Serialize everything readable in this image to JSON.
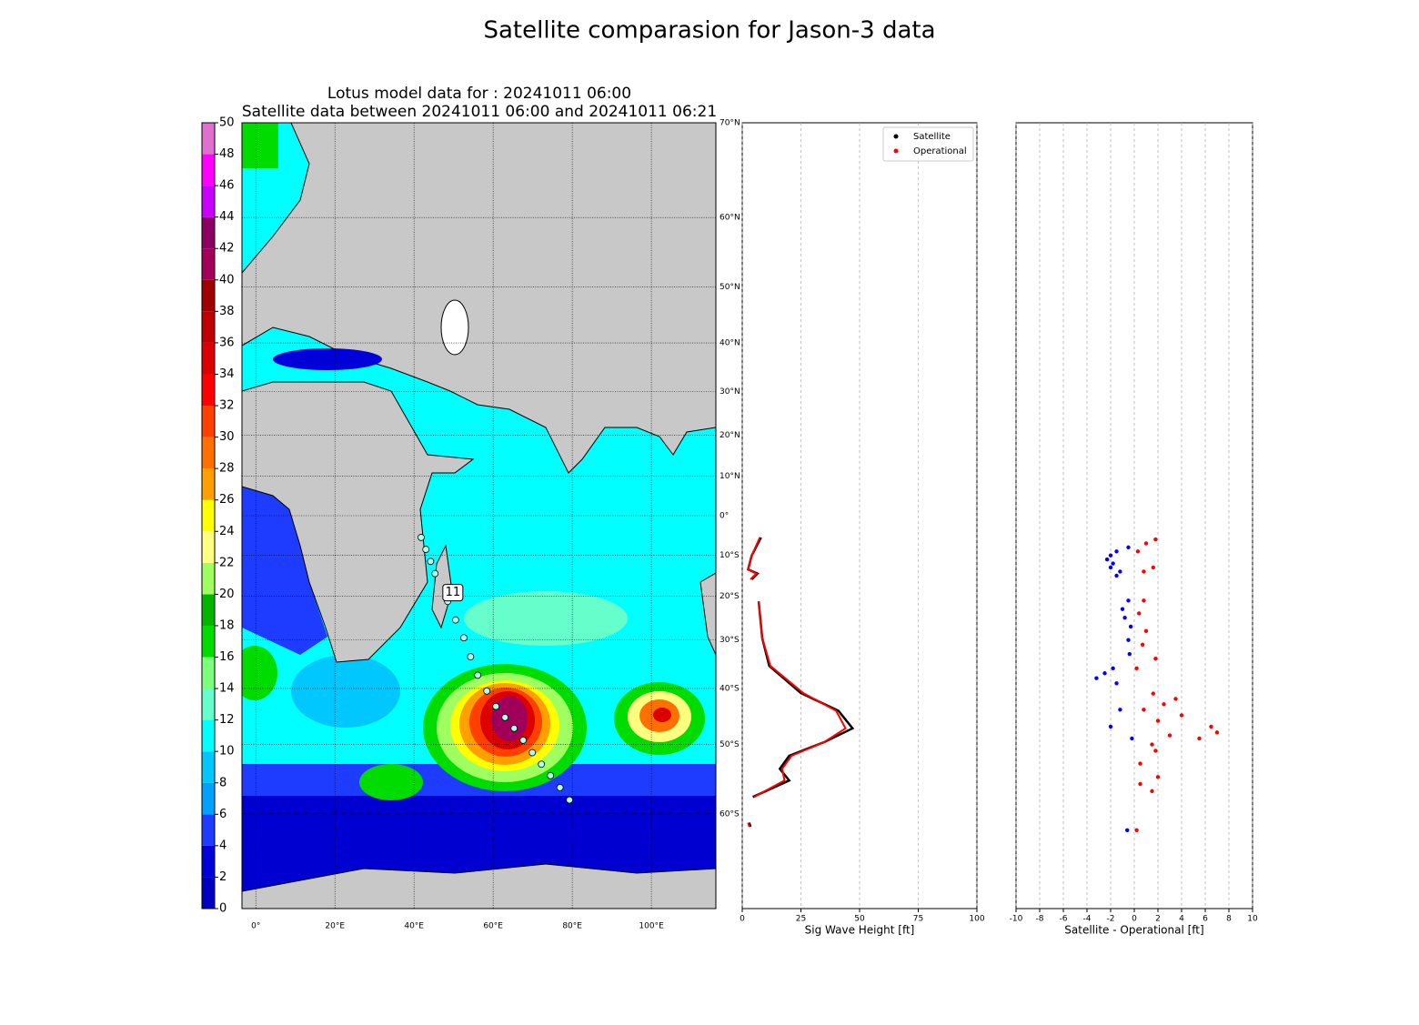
{
  "title": "Satellite comparasion for Jason-3 data",
  "chart_data": [
    {
      "type": "map",
      "title": "Lotus model data for : 20241011 06:00",
      "subtitle": "Satellite data between 20241011 06:00 and 20241011 06:21",
      "xlim": [
        -3.5,
        116.3
      ],
      "ylim": [
        -70,
        70
      ],
      "y_scale": "mercator",
      "grid": true,
      "xticks": [
        {
          "value": 0,
          "label": "0°"
        },
        {
          "value": 20,
          "label": "20°E"
        },
        {
          "value": 40,
          "label": "40°E"
        },
        {
          "value": 60,
          "label": "60°E"
        },
        {
          "value": 80,
          "label": "80°E"
        },
        {
          "value": 100,
          "label": "100°E"
        }
      ],
      "yticks": [
        {
          "value": 70,
          "label": "70°N"
        },
        {
          "value": 60,
          "label": "60°N"
        },
        {
          "value": 50,
          "label": "50°N"
        },
        {
          "value": 40,
          "label": "40°N"
        },
        {
          "value": 30,
          "label": "30°N"
        },
        {
          "value": 20,
          "label": "20°N"
        },
        {
          "value": 10,
          "label": "10°N"
        },
        {
          "value": 0,
          "label": "0°"
        },
        {
          "value": -10,
          "label": "10°S"
        },
        {
          "value": -20,
          "label": "20°S"
        },
        {
          "value": -30,
          "label": "30°S"
        },
        {
          "value": -40,
          "label": "40°S"
        },
        {
          "value": -50,
          "label": "50°S"
        },
        {
          "value": -60,
          "label": "60°S"
        }
      ],
      "colorbar": {
        "levels": [
          0,
          2,
          4,
          6,
          8,
          10,
          12,
          14,
          16,
          18,
          20,
          22,
          24,
          26,
          28,
          30,
          32,
          34,
          36,
          38,
          40,
          42,
          44,
          46,
          48,
          50
        ],
        "colors": [
          "#0000c0",
          "#0000d8",
          "#1e3cff",
          "#00a0ff",
          "#00c8ff",
          "#00ffff",
          "#66ffcc",
          "#7cff7c",
          "#00dc00",
          "#00b400",
          "#a0ff60",
          "#ffff80",
          "#ffff00",
          "#ffa000",
          "#ff7000",
          "#ff4000",
          "#ff0000",
          "#dc0000",
          "#c00000",
          "#a00000",
          "#a0005a",
          "#8c0064",
          "#c800ff",
          "#ff00ff",
          "#e070d0"
        ]
      },
      "track": {
        "label": "11",
        "x": [
          41.8,
          43,
          44.2,
          45.3,
          null,
          48.5,
          50.5,
          52.6,
          54.3,
          56.1,
          58.4,
          60.7,
          63,
          65.3,
          67.6,
          69.9,
          72.2,
          74.5,
          76.9,
          79.3
        ],
        "y": [
          -5.5,
          -8.5,
          -11.5,
          -14.5,
          null,
          -21.2,
          -25.5,
          -29.5,
          -33.6,
          -37.4,
          -40.5,
          -43.4,
          -45.4,
          -47.3,
          -49.3,
          -51.3,
          -53.1,
          -54.8,
          -56.5,
          -58.2
        ]
      }
    },
    {
      "type": "line",
      "xlabel": "Sig Wave Height [ft]",
      "xlim": [
        0,
        100
      ],
      "xticks": [
        0,
        25,
        50,
        75,
        100
      ],
      "ylim": [
        -70,
        70
      ],
      "y_scale": "mercator",
      "grid": true,
      "legend": "upper right",
      "y": [
        -5.5,
        -10.1,
        -13.5,
        -14.5,
        -15.9,
        -18,
        -21.2,
        -29.5,
        -35.5,
        -40.9,
        -44.2,
        -47.3,
        -49.6,
        -51.8,
        -53.8,
        -55.5,
        -57.8,
        -59,
        -61.1,
        -61.6
      ],
      "series": [
        {
          "name": "Satellite",
          "color": "#000000",
          "values": [
            8,
            4,
            2.5,
            6.5,
            4,
            null,
            7,
            8.5,
            11.5,
            25,
            41,
            47,
            35,
            20,
            16,
            20,
            4.5,
            null,
            3,
            3.5
          ]
        },
        {
          "name": "Operational",
          "color": "#ff0000",
          "values": [
            7.5,
            4,
            2.5,
            6,
            3.5,
            null,
            7,
            8.5,
            12,
            26,
            40,
            44,
            35,
            21,
            17,
            18,
            5,
            null,
            2.5,
            3
          ]
        }
      ]
    },
    {
      "type": "scatter",
      "xlabel": "Satellite - Operational [ft]",
      "xlim": [
        -10,
        10
      ],
      "xticks": [
        -10,
        -8,
        -6,
        -4,
        -2,
        0,
        2,
        4,
        6,
        8,
        10
      ],
      "ylim": [
        -70,
        70
      ],
      "y_scale": "mercator",
      "grid": true,
      "series": [
        {
          "color": "#0000ff",
          "y": [
            -8,
            -9,
            -10,
            -11,
            -12,
            -13,
            -14,
            -15,
            -21,
            -23,
            -25,
            -27,
            -30,
            -33,
            -36,
            -37,
            -38,
            -39,
            -44,
            -47,
            -49,
            -62
          ],
          "values": [
            -0.5,
            -1.5,
            -2,
            -2.3,
            -1.8,
            -2,
            -1.2,
            -1.5,
            -0.5,
            -1,
            -0.8,
            -0.3,
            -0.5,
            -0.4,
            -1.8,
            -2.5,
            -3.2,
            -1.5,
            -1.2,
            -2,
            -0.2,
            -0.6
          ]
        },
        {
          "color": "#ff0000",
          "y": [
            -6,
            -7,
            -9,
            -13,
            -14,
            -21,
            -24,
            -28,
            -31,
            -34,
            -36,
            -41,
            -42,
            -43,
            -44,
            -45,
            -46,
            -47,
            -48,
            -48.5,
            -49,
            -50,
            -51,
            -53,
            -55,
            -56,
            -57,
            -62
          ],
          "values": [
            1.8,
            1,
            0.3,
            1.6,
            0.8,
            0.8,
            0.4,
            1,
            0.7,
            1.8,
            0.2,
            1.6,
            3.5,
            2.5,
            0.8,
            4,
            2,
            6.5,
            7,
            3,
            5.5,
            1.5,
            1.8,
            0.5,
            2,
            0.5,
            1.5,
            0.2
          ]
        }
      ]
    }
  ]
}
